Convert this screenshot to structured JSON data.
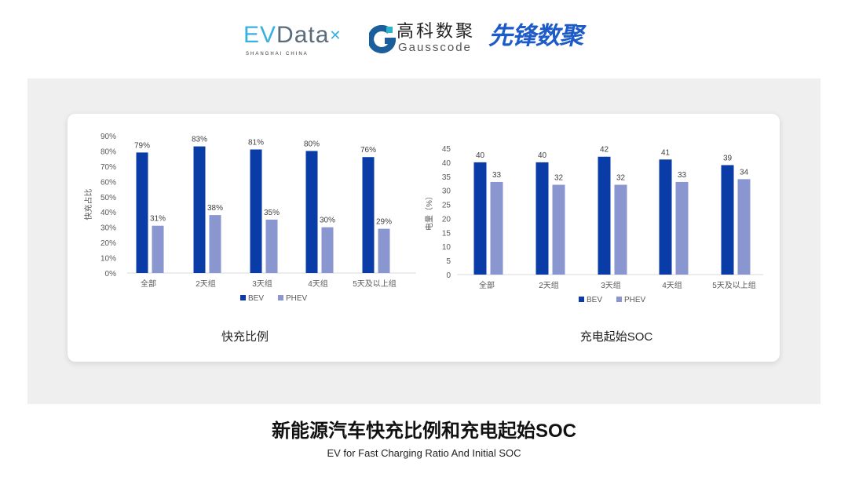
{
  "logos": {
    "evdata": "EVData",
    "evdata_sub": "SHANGHAI CHINA",
    "gauss_cn": "高科数聚",
    "gauss_en": "Gausscode",
    "xianfeng": "先锋数聚"
  },
  "colors": {
    "bev": "#0a3ca8",
    "phev": "#8a96cf",
    "axis": "#d9d9d9",
    "text": "#595959"
  },
  "main_title": "新能源汽车快充比例和充电起始SOC",
  "sub_title": "EV for Fast Charging Ratio And Initial SOC",
  "chart_data": [
    {
      "type": "bar",
      "title": "快充比例",
      "ylabel": "快充占比",
      "ylim": [
        0,
        90
      ],
      "yticks": [
        "0%",
        "10%",
        "20%",
        "30%",
        "40%",
        "50%",
        "60%",
        "70%",
        "80%",
        "90%"
      ],
      "categories": [
        "全部",
        "2天组",
        "3天组",
        "4天组",
        "5天及以上组"
      ],
      "series": [
        {
          "name": "BEV",
          "values": [
            79,
            83,
            81,
            80,
            76
          ],
          "labels": [
            "79%",
            "83%",
            "81%",
            "80%",
            "76%"
          ]
        },
        {
          "name": "PHEV",
          "values": [
            31,
            38,
            35,
            30,
            29
          ],
          "labels": [
            "31%",
            "38%",
            "35%",
            "30%",
            "29%"
          ]
        }
      ],
      "legend": "bottom",
      "grid": false
    },
    {
      "type": "bar",
      "title": "充电起始SOC",
      "ylabel": "电量（%）",
      "ylim": [
        0,
        45
      ],
      "yticks": [
        "0",
        "5",
        "10",
        "15",
        "20",
        "25",
        "30",
        "35",
        "40",
        "45"
      ],
      "categories": [
        "全部",
        "2天组",
        "3天组",
        "4天组",
        "5天及以上组"
      ],
      "series": [
        {
          "name": "BEV",
          "values": [
            40,
            40,
            42,
            41,
            39
          ],
          "labels": [
            "40",
            "40",
            "42",
            "41",
            "39"
          ]
        },
        {
          "name": "PHEV",
          "values": [
            33,
            32,
            32,
            33,
            34
          ],
          "labels": [
            "33",
            "32",
            "32",
            "33",
            "34"
          ]
        }
      ],
      "legend": "bottom",
      "grid": false
    }
  ]
}
